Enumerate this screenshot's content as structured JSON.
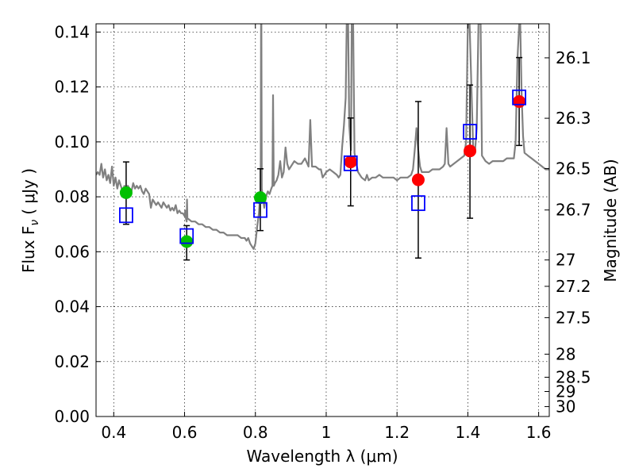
{
  "chart_data": {
    "type": "scatter",
    "xlabel": "Wavelength  λ (μm)",
    "ylabel": "Flux  F",
    "ylabel_sub": "ν",
    "ylabel_unit": "( μJy )",
    "y2label": "Magnitude (AB)",
    "xlim": [
      0.35,
      1.63
    ],
    "ylim": [
      0.0,
      0.143
    ],
    "x_ticks": [
      0.4,
      0.6,
      0.8,
      1.0,
      1.2,
      1.4,
      1.6
    ],
    "x_tick_labels": [
      "0.4",
      "0.6",
      "0.8",
      "1",
      "1.2",
      "1.4",
      "1.6"
    ],
    "y_ticks": [
      0.0,
      0.02,
      0.04,
      0.06,
      0.08,
      0.1,
      0.12,
      0.14
    ],
    "y_tick_labels": [
      "0.00",
      "0.02",
      "0.04",
      "0.06",
      "0.08",
      "0.10",
      "0.12",
      "0.14"
    ],
    "y2_ticks": [
      {
        "label": "26.1",
        "flux": 0.1306
      },
      {
        "label": "26.3",
        "flux": 0.1086
      },
      {
        "label": "26.5",
        "flux": 0.0903
      },
      {
        "label": "26.7",
        "flux": 0.0752
      },
      {
        "label": "27",
        "flux": 0.057
      },
      {
        "label": "27.2",
        "flux": 0.0474
      },
      {
        "label": "27.5",
        "flux": 0.036
      },
      {
        "label": "28",
        "flux": 0.0227
      },
      {
        "label": "28.5",
        "flux": 0.0143
      },
      {
        "label": "29",
        "flux": 0.0091
      },
      {
        "label": "30",
        "flux": 0.0036
      }
    ],
    "grid": true,
    "colors": {
      "model": "#808080",
      "green_points": "#00c000",
      "red_points": "#ff0000",
      "model_squares": "#0000ff",
      "error_bars": "#000000"
    },
    "model_spectrum": [
      [
        0.35,
        0.088
      ],
      [
        0.355,
        0.089
      ],
      [
        0.36,
        0.088
      ],
      [
        0.365,
        0.092
      ],
      [
        0.37,
        0.087
      ],
      [
        0.375,
        0.09
      ],
      [
        0.38,
        0.086
      ],
      [
        0.385,
        0.088
      ],
      [
        0.39,
        0.085
      ],
      [
        0.395,
        0.091
      ],
      [
        0.4,
        0.084
      ],
      [
        0.405,
        0.087
      ],
      [
        0.41,
        0.083
      ],
      [
        0.415,
        0.086
      ],
      [
        0.42,
        0.084
      ],
      [
        0.425,
        0.082
      ],
      [
        0.43,
        0.084
      ],
      [
        0.435,
        0.083
      ],
      [
        0.44,
        0.084
      ],
      [
        0.445,
        0.083
      ],
      [
        0.45,
        0.082
      ],
      [
        0.455,
        0.085
      ],
      [
        0.46,
        0.083
      ],
      [
        0.465,
        0.084
      ],
      [
        0.47,
        0.083
      ],
      [
        0.475,
        0.084
      ],
      [
        0.48,
        0.082
      ],
      [
        0.485,
        0.081
      ],
      [
        0.49,
        0.083
      ],
      [
        0.495,
        0.082
      ],
      [
        0.5,
        0.081
      ],
      [
        0.505,
        0.076
      ],
      [
        0.51,
        0.079
      ],
      [
        0.515,
        0.078
      ],
      [
        0.52,
        0.077
      ],
      [
        0.525,
        0.078
      ],
      [
        0.53,
        0.077
      ],
      [
        0.535,
        0.076
      ],
      [
        0.54,
        0.078
      ],
      [
        0.545,
        0.077
      ],
      [
        0.55,
        0.076
      ],
      [
        0.555,
        0.077
      ],
      [
        0.56,
        0.075
      ],
      [
        0.565,
        0.076
      ],
      [
        0.57,
        0.075
      ],
      [
        0.575,
        0.077
      ],
      [
        0.58,
        0.074
      ],
      [
        0.585,
        0.075
      ],
      [
        0.59,
        0.074
      ],
      [
        0.595,
        0.074
      ],
      [
        0.6,
        0.073
      ],
      [
        0.602,
        0.075
      ],
      [
        0.604,
        0.072
      ],
      [
        0.606,
        0.071
      ],
      [
        0.607,
        0.079
      ],
      [
        0.608,
        0.072
      ],
      [
        0.61,
        0.072
      ],
      [
        0.62,
        0.071
      ],
      [
        0.63,
        0.071
      ],
      [
        0.64,
        0.07
      ],
      [
        0.65,
        0.07
      ],
      [
        0.66,
        0.069
      ],
      [
        0.67,
        0.069
      ],
      [
        0.68,
        0.068
      ],
      [
        0.69,
        0.068
      ],
      [
        0.7,
        0.067
      ],
      [
        0.71,
        0.067
      ],
      [
        0.72,
        0.066
      ],
      [
        0.73,
        0.066
      ],
      [
        0.74,
        0.066
      ],
      [
        0.75,
        0.066
      ],
      [
        0.76,
        0.065
      ],
      [
        0.77,
        0.065
      ],
      [
        0.775,
        0.064
      ],
      [
        0.78,
        0.065
      ],
      [
        0.785,
        0.063
      ],
      [
        0.79,
        0.062
      ],
      [
        0.795,
        0.061
      ],
      [
        0.8,
        0.063
      ],
      [
        0.805,
        0.069
      ],
      [
        0.81,
        0.074
      ],
      [
        0.812,
        0.078
      ],
      [
        0.815,
        0.082
      ],
      [
        0.816,
        0.143
      ],
      [
        0.817,
        0.143
      ],
      [
        0.818,
        0.083
      ],
      [
        0.82,
        0.081
      ],
      [
        0.825,
        0.076
      ],
      [
        0.83,
        0.08
      ],
      [
        0.835,
        0.082
      ],
      [
        0.84,
        0.081
      ],
      [
        0.845,
        0.083
      ],
      [
        0.848,
        0.084
      ],
      [
        0.85,
        0.117
      ],
      [
        0.852,
        0.084
      ],
      [
        0.855,
        0.085
      ],
      [
        0.86,
        0.086
      ],
      [
        0.865,
        0.088
      ],
      [
        0.87,
        0.093
      ],
      [
        0.875,
        0.087
      ],
      [
        0.88,
        0.089
      ],
      [
        0.885,
        0.098
      ],
      [
        0.89,
        0.092
      ],
      [
        0.895,
        0.09
      ],
      [
        0.9,
        0.091
      ],
      [
        0.91,
        0.093
      ],
      [
        0.92,
        0.092
      ],
      [
        0.93,
        0.092
      ],
      [
        0.94,
        0.094
      ],
      [
        0.95,
        0.091
      ],
      [
        0.955,
        0.108
      ],
      [
        0.96,
        0.091
      ],
      [
        0.965,
        0.091
      ],
      [
        0.97,
        0.091
      ],
      [
        0.98,
        0.09
      ],
      [
        0.985,
        0.09
      ],
      [
        0.99,
        0.087
      ],
      [
        1.0,
        0.089
      ],
      [
        1.01,
        0.09
      ],
      [
        1.02,
        0.089
      ],
      [
        1.03,
        0.088
      ],
      [
        1.035,
        0.087
      ],
      [
        1.04,
        0.088
      ],
      [
        1.045,
        0.098
      ],
      [
        1.05,
        0.106
      ],
      [
        1.055,
        0.116
      ],
      [
        1.058,
        0.143
      ],
      [
        1.062,
        0.143
      ],
      [
        1.065,
        0.106
      ],
      [
        1.07,
        0.097
      ],
      [
        1.072,
        0.143
      ],
      [
        1.076,
        0.143
      ],
      [
        1.08,
        0.096
      ],
      [
        1.085,
        0.092
      ],
      [
        1.09,
        0.089
      ],
      [
        1.1,
        0.087
      ],
      [
        1.11,
        0.086
      ],
      [
        1.115,
        0.088
      ],
      [
        1.12,
        0.086
      ],
      [
        1.13,
        0.087
      ],
      [
        1.14,
        0.087
      ],
      [
        1.15,
        0.088
      ],
      [
        1.16,
        0.087
      ],
      [
        1.17,
        0.087
      ],
      [
        1.18,
        0.087
      ],
      [
        1.19,
        0.087
      ],
      [
        1.2,
        0.086
      ],
      [
        1.21,
        0.087
      ],
      [
        1.22,
        0.087
      ],
      [
        1.23,
        0.087
      ],
      [
        1.24,
        0.088
      ],
      [
        1.245,
        0.09
      ],
      [
        1.25,
        0.097
      ],
      [
        1.255,
        0.105
      ],
      [
        1.26,
        0.097
      ],
      [
        1.265,
        0.091
      ],
      [
        1.27,
        0.089
      ],
      [
        1.28,
        0.089
      ],
      [
        1.29,
        0.089
      ],
      [
        1.3,
        0.09
      ],
      [
        1.31,
        0.09
      ],
      [
        1.32,
        0.09
      ],
      [
        1.33,
        0.091
      ],
      [
        1.335,
        0.092
      ],
      [
        1.34,
        0.105
      ],
      [
        1.345,
        0.092
      ],
      [
        1.35,
        0.091
      ],
      [
        1.36,
        0.092
      ],
      [
        1.37,
        0.093
      ],
      [
        1.38,
        0.094
      ],
      [
        1.39,
        0.095
      ],
      [
        1.395,
        0.1
      ],
      [
        1.4,
        0.143
      ],
      [
        1.405,
        0.143
      ],
      [
        1.41,
        0.12
      ],
      [
        1.415,
        0.098
      ],
      [
        1.42,
        0.096
      ],
      [
        1.425,
        0.105
      ],
      [
        1.43,
        0.143
      ],
      [
        1.436,
        0.143
      ],
      [
        1.44,
        0.095
      ],
      [
        1.45,
        0.093
      ],
      [
        1.46,
        0.092
      ],
      [
        1.47,
        0.093
      ],
      [
        1.48,
        0.093
      ],
      [
        1.49,
        0.093
      ],
      [
        1.5,
        0.093
      ],
      [
        1.51,
        0.094
      ],
      [
        1.52,
        0.094
      ],
      [
        1.53,
        0.094
      ],
      [
        1.535,
        0.1
      ],
      [
        1.54,
        0.13
      ],
      [
        1.545,
        0.143
      ],
      [
        1.548,
        0.143
      ],
      [
        1.552,
        0.117
      ],
      [
        1.556,
        0.102
      ],
      [
        1.56,
        0.096
      ],
      [
        1.57,
        0.095
      ],
      [
        1.58,
        0.094
      ],
      [
        1.59,
        0.093
      ],
      [
        1.6,
        0.092
      ],
      [
        1.61,
        0.091
      ],
      [
        1.62,
        0.09
      ],
      [
        1.63,
        0.09
      ]
    ],
    "green_points": [
      {
        "x": 0.435,
        "y": 0.0815
      },
      {
        "x": 0.606,
        "y": 0.0637
      },
      {
        "x": 0.814,
        "y": 0.0797
      }
    ],
    "red_points": [
      {
        "x": 1.069,
        "y": 0.0927
      },
      {
        "x": 1.26,
        "y": 0.0862
      },
      {
        "x": 1.406,
        "y": 0.0967
      },
      {
        "x": 1.545,
        "y": 0.1147
      }
    ],
    "error_bars": [
      {
        "x": 0.435,
        "low": 0.07,
        "high": 0.0927
      },
      {
        "x": 0.606,
        "low": 0.057,
        "high": 0.0695
      },
      {
        "x": 0.814,
        "low": 0.0677,
        "high": 0.0902
      },
      {
        "x": 1.069,
        "low": 0.0767,
        "high": 0.1087
      },
      {
        "x": 1.26,
        "low": 0.0577,
        "high": 0.1147
      },
      {
        "x": 1.406,
        "low": 0.0722,
        "high": 0.1207
      },
      {
        "x": 1.545,
        "low": 0.0987,
        "high": 0.1307
      }
    ],
    "model_squares": [
      {
        "x": 0.435,
        "y": 0.0733
      },
      {
        "x": 0.606,
        "y": 0.0657
      },
      {
        "x": 0.814,
        "y": 0.0752
      },
      {
        "x": 1.069,
        "y": 0.0922
      },
      {
        "x": 1.26,
        "y": 0.0777
      },
      {
        "x": 1.406,
        "y": 0.1037
      },
      {
        "x": 1.545,
        "y": 0.1162
      }
    ]
  }
}
